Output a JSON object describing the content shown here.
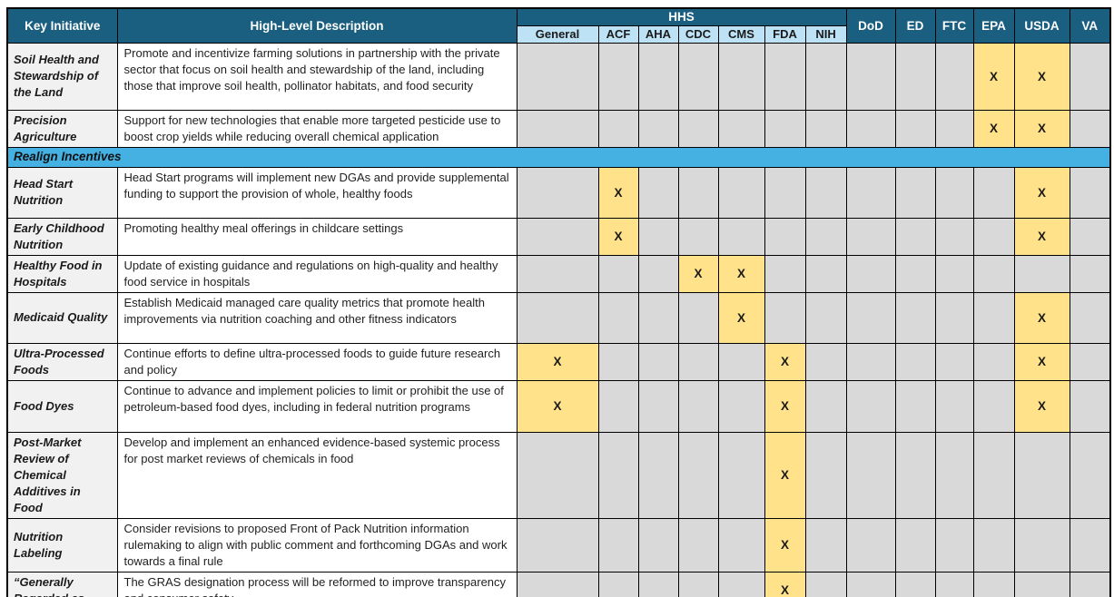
{
  "table": {
    "columns": {
      "key_initiative_label": "Key Initiative",
      "description_label": "High-Level Description",
      "hhs_group_label": "HHS",
      "hhs_subcolumns": [
        "General",
        "ACF",
        "AHA",
        "CDC",
        "CMS",
        "FDA",
        "NIH"
      ],
      "agency_columns": [
        "DoD",
        "ED",
        "FTC",
        "EPA",
        "USDA",
        "VA"
      ]
    },
    "mark_symbol": "X",
    "colors": {
      "header_bg": "#1B5F80",
      "subheader_bg": "#BDE2F5",
      "section_bg": "#45B0E2",
      "highlight_bg": "#FFE289",
      "cell_bg": "#D9D9D9",
      "initiative_bg": "#F1F1F1"
    },
    "rows": [
      {
        "type": "item",
        "initiative": "Soil Health and Stewardship of the Land",
        "description": "Promote and incentivize farming solutions in partnership with the private sector that focus on soil health and stewardship of the land, including those that improve soil health, pollinator habitats, and food security",
        "marks": [
          "EPA",
          "USDA"
        ]
      },
      {
        "type": "item",
        "initiative": "Precision Agriculture",
        "description": "Support for new technologies that enable more targeted pesticide use to boost crop yields while reducing overall chemical application",
        "marks": [
          "EPA",
          "USDA"
        ]
      },
      {
        "type": "section",
        "label": "Realign Incentives"
      },
      {
        "type": "item",
        "initiative": "Head Start Nutrition",
        "description": "Head Start programs will implement new DGAs and provide supplemental funding to support the provision of whole, healthy foods",
        "marks": [
          "ACF",
          "USDA"
        ]
      },
      {
        "type": "item",
        "initiative": "Early Childhood Nutrition",
        "description": "Promoting healthy meal offerings in childcare settings",
        "marks": [
          "ACF",
          "USDA"
        ]
      },
      {
        "type": "item",
        "initiative": "Healthy Food in Hospitals",
        "description": "Update of existing guidance and regulations on high-quality and healthy food service in hospitals",
        "marks": [
          "CDC",
          "CMS"
        ]
      },
      {
        "type": "item",
        "initiative": "Medicaid Quality",
        "description": "Establish Medicaid managed care quality metrics that promote health improvements via nutrition coaching and other fitness indicators",
        "marks": [
          "CMS",
          "USDA"
        ]
      },
      {
        "type": "item",
        "initiative": "Ultra-Processed Foods",
        "description": "Continue efforts to define ultra-processed foods to guide future research and policy",
        "marks": [
          "General",
          "FDA",
          "USDA"
        ]
      },
      {
        "type": "item",
        "initiative": "Food Dyes",
        "description": "Continue to advance and implement policies to limit or prohibit the use of petroleum-based food dyes, including in federal nutrition programs",
        "marks": [
          "General",
          "FDA",
          "USDA"
        ]
      },
      {
        "type": "item",
        "initiative": "Post-Market Review of Chemical Additives in Food",
        "description": "Develop and implement an enhanced evidence-based systemic process for post market reviews of chemicals in food",
        "marks": [
          "FDA"
        ]
      },
      {
        "type": "item",
        "initiative": "Nutrition Labeling",
        "description": "Consider revisions to proposed Front of Pack Nutrition information rulemaking to align with public comment and forthcoming DGAs and work towards a final rule",
        "marks": [
          "FDA"
        ]
      },
      {
        "type": "item",
        "initiative": "“Generally Regarded as",
        "description": "The GRAS designation process will be reformed to improve transparency and consumer safety",
        "marks": [
          "FDA"
        ]
      }
    ]
  }
}
